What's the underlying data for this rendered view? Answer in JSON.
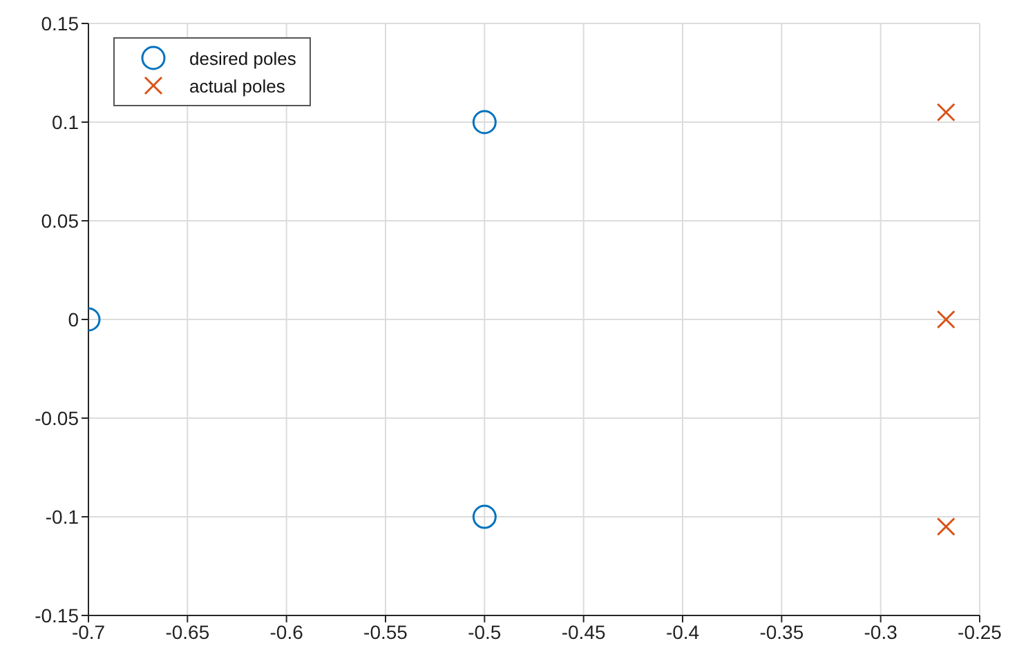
{
  "chart_data": {
    "type": "scatter",
    "series": [
      {
        "name": "desired poles",
        "color": "#0072bd",
        "marker": "circle",
        "x": [
          -0.7,
          -0.5,
          -0.5
        ],
        "values": [
          0,
          0.1,
          -0.1
        ]
      },
      {
        "name": "actual poles",
        "color": "#d95319",
        "marker": "cross",
        "x": [
          -0.267,
          -0.267,
          -0.267
        ],
        "values": [
          0.105,
          0,
          -0.105
        ]
      }
    ],
    "xlim": [
      -0.7,
      -0.25
    ],
    "xticks": [
      -0.7,
      -0.65,
      -0.6,
      -0.55,
      -0.5,
      -0.45,
      -0.4,
      -0.35,
      -0.3,
      -0.25
    ],
    "ylim": [
      -0.15,
      0.15
    ],
    "yticks": [
      -0.15,
      -0.1,
      -0.05,
      0,
      0.05,
      0.1,
      0.15
    ],
    "grid": true,
    "legend": "top left"
  }
}
